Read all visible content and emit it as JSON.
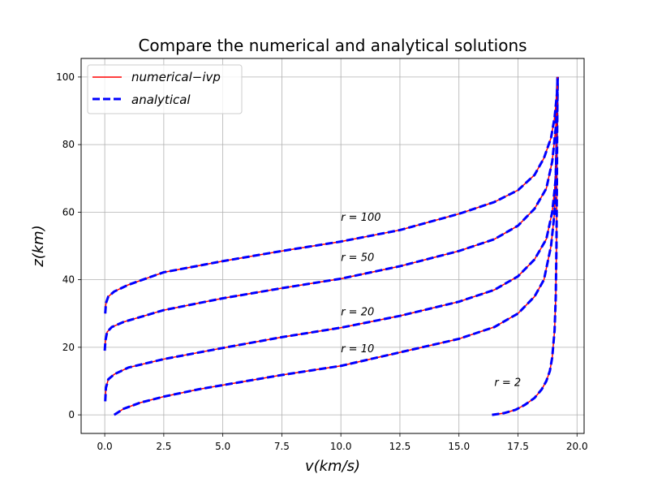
{
  "chart_data": {
    "type": "line",
    "title": "Compare the numerical and analytical solutions",
    "xlabel": "v(km/s)",
    "ylabel": "z(km)",
    "xlim": [
      -1.0,
      20.3
    ],
    "ylim": [
      -5.5,
      105.5
    ],
    "xticks": [
      0.0,
      2.5,
      5.0,
      7.5,
      10.0,
      12.5,
      15.0,
      17.5,
      20.0
    ],
    "xtick_labels": [
      "0.0",
      "2.5",
      "5.0",
      "7.5",
      "10.0",
      "12.5",
      "15.0",
      "17.5",
      "20.0"
    ],
    "yticks": [
      0,
      20,
      40,
      60,
      80,
      100
    ],
    "ytick_labels": [
      "0",
      "20",
      "40",
      "60",
      "80",
      "100"
    ],
    "grid": true,
    "legend": {
      "placement": "upper-left",
      "entries": [
        {
          "label": "numerical−ivp",
          "color": "#ff0000",
          "style": "solid"
        },
        {
          "label": "analytical",
          "color": "#0000ff",
          "style": "dashed"
        }
      ]
    },
    "series": [
      {
        "r": 2,
        "label": "r = 2",
        "label_pos": [
          16.5,
          8.5
        ],
        "points": [
          [
            16.4,
            0
          ],
          [
            16.9,
            0.5
          ],
          [
            17.4,
            1.5
          ],
          [
            17.8,
            3
          ],
          [
            18.2,
            5
          ],
          [
            18.5,
            7.5
          ],
          [
            18.7,
            10
          ],
          [
            18.85,
            13
          ],
          [
            18.95,
            17
          ],
          [
            19.05,
            25
          ],
          [
            19.1,
            35
          ],
          [
            19.13,
            50
          ],
          [
            19.15,
            70
          ],
          [
            19.16,
            85
          ],
          [
            19.18,
            100
          ]
        ]
      },
      {
        "r": 10,
        "label": "r = 10",
        "label_pos": [
          10.0,
          18.5
        ],
        "points": [
          [
            0.4,
            0
          ],
          [
            0.8,
            1.8
          ],
          [
            1.5,
            3.6
          ],
          [
            2.5,
            5.4
          ],
          [
            4.0,
            7.6
          ],
          [
            5.0,
            8.8
          ],
          [
            7.5,
            11.8
          ],
          [
            10.0,
            14.5
          ],
          [
            12.5,
            18.5
          ],
          [
            15.0,
            22.5
          ],
          [
            16.5,
            26
          ],
          [
            17.5,
            30
          ],
          [
            18.2,
            35
          ],
          [
            18.6,
            40
          ],
          [
            18.9,
            50
          ],
          [
            19.05,
            60
          ],
          [
            19.12,
            75
          ],
          [
            19.16,
            90
          ],
          [
            19.18,
            100
          ]
        ]
      },
      {
        "r": 20,
        "label": "r = 20",
        "label_pos": [
          10.0,
          29.5
        ],
        "points": [
          [
            0.02,
            4
          ],
          [
            0.05,
            8
          ],
          [
            0.15,
            10.5
          ],
          [
            0.4,
            12
          ],
          [
            1.0,
            14
          ],
          [
            2.5,
            16.5
          ],
          [
            5.0,
            19.8
          ],
          [
            7.5,
            23
          ],
          [
            10.0,
            25.8
          ],
          [
            12.5,
            29.3
          ],
          [
            15.0,
            33.5
          ],
          [
            16.5,
            37
          ],
          [
            17.5,
            41
          ],
          [
            18.2,
            46
          ],
          [
            18.7,
            52
          ],
          [
            18.95,
            60
          ],
          [
            19.1,
            70
          ],
          [
            19.15,
            85
          ],
          [
            19.18,
            100
          ]
        ]
      },
      {
        "r": 50,
        "label": "r = 50",
        "label_pos": [
          10.0,
          45.5
        ],
        "points": [
          [
            0.0,
            19
          ],
          [
            0.03,
            22
          ],
          [
            0.1,
            24.5
          ],
          [
            0.3,
            26
          ],
          [
            0.8,
            27.5
          ],
          [
            2.5,
            31
          ],
          [
            5.0,
            34.5
          ],
          [
            7.5,
            37.5
          ],
          [
            10.0,
            40.3
          ],
          [
            12.5,
            44
          ],
          [
            15.0,
            48.5
          ],
          [
            16.5,
            52
          ],
          [
            17.5,
            56
          ],
          [
            18.2,
            61
          ],
          [
            18.7,
            67
          ],
          [
            18.95,
            75
          ],
          [
            19.1,
            85
          ],
          [
            19.18,
            100
          ]
        ]
      },
      {
        "r": 100,
        "label": "r = 100",
        "label_pos": [
          10.0,
          57.5
        ],
        "points": [
          [
            0.02,
            30
          ],
          [
            0.05,
            33
          ],
          [
            0.15,
            35
          ],
          [
            0.4,
            36.5
          ],
          [
            1.0,
            38.5
          ],
          [
            2.5,
            42.2
          ],
          [
            5.0,
            45.5
          ],
          [
            7.5,
            48.5
          ],
          [
            10.0,
            51.3
          ],
          [
            12.5,
            54.7
          ],
          [
            15.0,
            59.5
          ],
          [
            16.5,
            63
          ],
          [
            17.5,
            66.5
          ],
          [
            18.2,
            71
          ],
          [
            18.6,
            76
          ],
          [
            18.9,
            82
          ],
          [
            19.05,
            88
          ],
          [
            19.15,
            95
          ],
          [
            19.18,
            100
          ]
        ]
      }
    ]
  }
}
